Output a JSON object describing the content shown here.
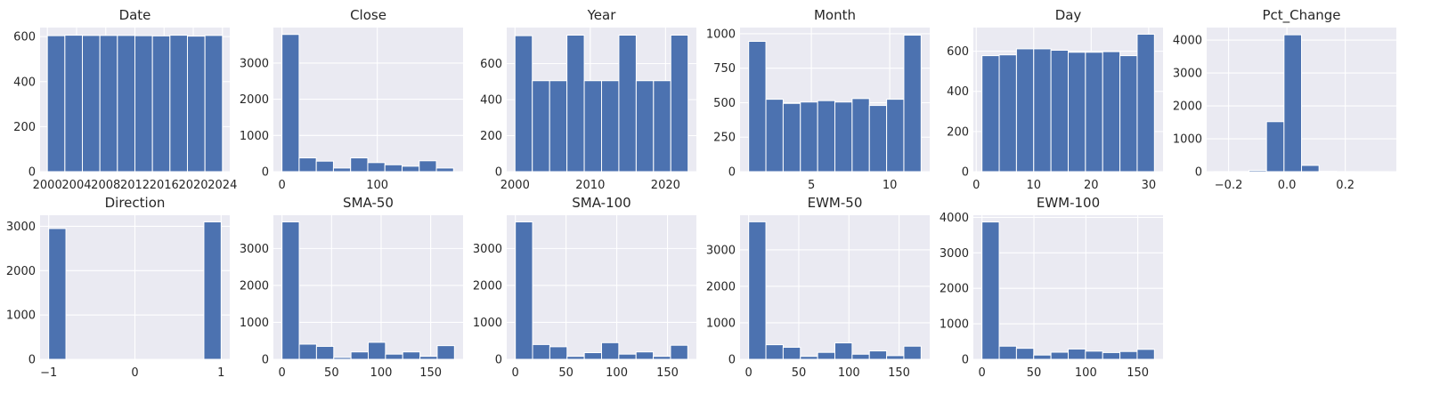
{
  "chart_data": [
    {
      "type": "bar",
      "title": "Date",
      "xlim": [
        1999.0,
        2025.0
      ],
      "ylim": [
        0,
        640
      ],
      "xticks": [
        2000,
        2004,
        2008,
        2012,
        2016,
        2020,
        2024
      ],
      "xtick_labels": [
        "2000",
        "2004",
        "2008",
        "2012",
        "2016",
        "2020",
        "2024"
      ],
      "yticks": [
        0,
        200,
        400,
        600
      ],
      "bin_edges": [
        2000.0,
        2002.4,
        2004.8,
        2007.2,
        2009.6,
        2012.0,
        2014.4,
        2016.8,
        2019.2,
        2021.6,
        2024.0
      ],
      "values": [
        604,
        606,
        605,
        605,
        605,
        604,
        603,
        606,
        602,
        605
      ]
    },
    {
      "type": "bar",
      "title": "Close",
      "xlim": [
        -9,
        190
      ],
      "ylim": [
        0,
        3980
      ],
      "xticks": [
        0,
        100
      ],
      "xtick_labels": [
        "0",
        "100"
      ],
      "yticks": [
        0,
        1000,
        2000,
        3000
      ],
      "bin_edges": [
        0,
        18,
        36,
        54,
        72,
        90,
        108,
        126,
        144,
        162,
        180
      ],
      "values": [
        3790,
        380,
        290,
        100,
        380,
        250,
        190,
        150,
        300,
        100
      ]
    },
    {
      "type": "bar",
      "title": "Year",
      "xlim": [
        1998.9,
        2024.1
      ],
      "ylim": [
        0,
        800
      ],
      "xticks": [
        2000,
        2010,
        2020
      ],
      "xtick_labels": [
        "2000",
        "2010",
        "2020"
      ],
      "yticks": [
        0,
        200,
        400,
        600
      ],
      "bin_edges": [
        2000.0,
        2002.3,
        2004.6,
        2006.9,
        2009.2,
        2011.5,
        2013.8,
        2016.1,
        2018.4,
        2020.7,
        2023.0
      ],
      "values": [
        755,
        505,
        505,
        758,
        505,
        505,
        758,
        505,
        505,
        758
      ]
    },
    {
      "type": "bar",
      "title": "Month",
      "xlim": [
        0.45,
        12.55
      ],
      "ylim": [
        0,
        1045
      ],
      "xticks": [
        5,
        10
      ],
      "xtick_labels": [
        "5",
        "10"
      ],
      "yticks": [
        0,
        250,
        500,
        750,
        1000
      ],
      "bin_edges": [
        1.0,
        2.1,
        3.2,
        4.3,
        5.4,
        6.5,
        7.6,
        8.7,
        9.8,
        10.9,
        12.0
      ],
      "values": [
        945,
        525,
        495,
        505,
        515,
        505,
        530,
        480,
        525,
        990
      ]
    },
    {
      "type": "bar",
      "title": "Day",
      "xlim": [
        -0.5,
        32.5
      ],
      "ylim": [
        0,
        718
      ],
      "xticks": [
        0,
        10,
        20,
        30
      ],
      "xtick_labels": [
        "0",
        "10",
        "20",
        "30"
      ],
      "yticks": [
        0,
        200,
        400,
        600
      ],
      "bin_edges": [
        1,
        4,
        7,
        10,
        13,
        16,
        19,
        22,
        25,
        28,
        31
      ],
      "values": [
        578,
        582,
        612,
        612,
        605,
        595,
        595,
        598,
        578,
        685
      ]
    },
    {
      "type": "bar",
      "title": "Pct_Change",
      "xlim": [
        -0.275,
        0.375
      ],
      "ylim": [
        0,
        4380
      ],
      "xticks": [
        -0.2,
        0.0,
        0.2
      ],
      "xtick_labels": [
        "−0.2",
        "0.0",
        "0.2"
      ],
      "yticks": [
        0,
        1000,
        2000,
        3000,
        4000
      ],
      "bin_edges": [
        -0.25,
        -0.19,
        -0.13,
        -0.07,
        -0.01,
        0.05,
        0.11,
        0.17,
        0.23,
        0.29,
        0.35
      ],
      "values": [
        2,
        5,
        40,
        1520,
        4160,
        190,
        10,
        3,
        1,
        1
      ]
    },
    {
      "type": "bar",
      "title": "Direction",
      "xlim": [
        -1.1,
        1.1
      ],
      "ylim": [
        0,
        3250
      ],
      "xticks": [
        -1,
        0,
        1
      ],
      "xtick_labels": [
        "−1",
        "0",
        "1"
      ],
      "yticks": [
        0,
        1000,
        2000,
        3000
      ],
      "bin_edges": [
        -1.0,
        -0.8,
        -0.6,
        -0.4,
        -0.2,
        0.0,
        0.2,
        0.4,
        0.6,
        0.8,
        1.0
      ],
      "values": [
        2950,
        0,
        0,
        0,
        0,
        0,
        0,
        0,
        0,
        3100
      ]
    },
    {
      "type": "bar",
      "title": "SMA-50",
      "xlim": [
        -8.7,
        182.7
      ],
      "ylim": [
        0,
        3900
      ],
      "xticks": [
        0,
        50,
        100,
        150
      ],
      "xtick_labels": [
        "0",
        "50",
        "100",
        "150"
      ],
      "yticks": [
        0,
        1000,
        2000,
        3000
      ],
      "bin_edges": [
        0,
        17.4,
        34.8,
        52.2,
        69.6,
        87.0,
        104.4,
        121.8,
        139.2,
        156.6,
        174.0
      ],
      "values": [
        3720,
        410,
        350,
        50,
        200,
        460,
        140,
        200,
        80,
        370
      ]
    },
    {
      "type": "bar",
      "title": "SMA-100",
      "xlim": [
        -8.5,
        178.5
      ],
      "ylim": [
        0,
        3900
      ],
      "xticks": [
        0,
        50,
        100,
        150
      ],
      "xtick_labels": [
        "0",
        "50",
        "100",
        "150"
      ],
      "yticks": [
        0,
        1000,
        2000,
        3000
      ],
      "bin_edges": [
        0,
        17,
        34,
        51,
        68,
        85,
        102,
        119,
        136,
        153,
        170
      ],
      "values": [
        3720,
        400,
        340,
        80,
        180,
        450,
        140,
        200,
        80,
        380
      ]
    },
    {
      "type": "bar",
      "title": "EWM-50",
      "xlim": [
        -8.6,
        180.6
      ],
      "ylim": [
        0,
        3950
      ],
      "xticks": [
        0,
        50,
        100,
        150
      ],
      "xtick_labels": [
        "0",
        "50",
        "100",
        "150"
      ],
      "yticks": [
        0,
        1000,
        2000,
        3000
      ],
      "bin_edges": [
        0,
        17.2,
        34.4,
        51.6,
        68.8,
        86.0,
        103.2,
        120.4,
        137.6,
        154.8,
        172.0
      ],
      "values": [
        3770,
        400,
        330,
        80,
        190,
        450,
        140,
        230,
        100,
        360
      ]
    },
    {
      "type": "bar",
      "title": "EWM-100",
      "xlim": [
        -8.3,
        174.3
      ],
      "ylim": [
        0,
        4060
      ],
      "xticks": [
        0,
        50,
        100,
        150
      ],
      "xtick_labels": [
        "0",
        "50",
        "100",
        "150"
      ],
      "yticks": [
        0,
        1000,
        2000,
        3000,
        4000
      ],
      "bin_edges": [
        0,
        16.6,
        33.2,
        49.8,
        66.4,
        83.0,
        99.6,
        116.2,
        132.8,
        149.4,
        166.0
      ],
      "values": [
        3870,
        370,
        310,
        120,
        200,
        290,
        230,
        190,
        220,
        280
      ]
    }
  ]
}
